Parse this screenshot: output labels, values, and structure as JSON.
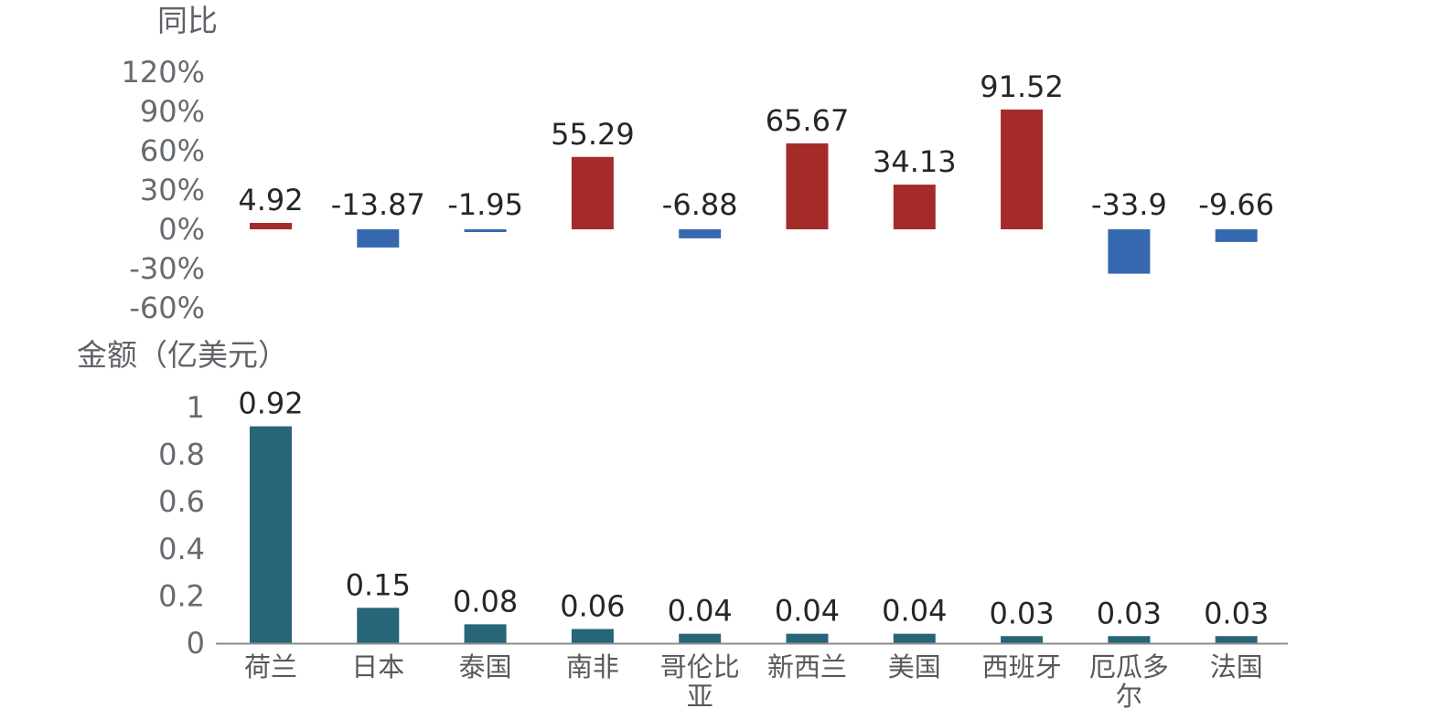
{
  "chart_data": [
    {
      "type": "bar",
      "ylabel": "同比",
      "yticks": [
        "120%",
        "90%",
        "60%",
        "30%",
        "0%",
        "-30%",
        "-60%"
      ],
      "ylim": [
        -60,
        120
      ],
      "categories": [
        "荷兰",
        "日本",
        "泰国",
        "南非",
        "哥伦比亚",
        "新西兰",
        "美国",
        "西班牙",
        "厄瓜多尔",
        "法国"
      ],
      "values": [
        4.92,
        -13.87,
        -1.95,
        55.29,
        -6.88,
        65.67,
        34.13,
        91.52,
        -33.9,
        -9.66
      ],
      "value_labels": [
        "4.92",
        "-13.87",
        "-1.95",
        "55.29",
        "-6.88",
        "65.67",
        "34.13",
        "91.52",
        "-33.9",
        "-9.66"
      ],
      "colors": {
        "positive": "#a52a2a",
        "negative": "#3668b0"
      },
      "grid": false
    },
    {
      "type": "bar",
      "ylabel": "金额（亿美元）",
      "yticks": [
        "1",
        "0.8",
        "0.6",
        "0.4",
        "0.2",
        "0"
      ],
      "ylim": [
        0,
        1
      ],
      "categories": [
        "荷兰",
        "日本",
        "泰国",
        "南非",
        "哥伦比亚",
        "新西兰",
        "美国",
        "西班牙",
        "厄瓜多尔",
        "法国"
      ],
      "category_lines": [
        [
          "荷兰"
        ],
        [
          "日本"
        ],
        [
          "泰国"
        ],
        [
          "南非"
        ],
        [
          "哥伦比",
          "亚"
        ],
        [
          "新西兰"
        ],
        [
          "美国"
        ],
        [
          "西班牙"
        ],
        [
          "厄瓜多",
          "尔"
        ],
        [
          "法国"
        ]
      ],
      "values": [
        0.92,
        0.15,
        0.08,
        0.06,
        0.04,
        0.04,
        0.04,
        0.03,
        0.03,
        0.03
      ],
      "value_labels": [
        "0.92",
        "0.15",
        "0.08",
        "0.06",
        "0.04",
        "0.04",
        "0.04",
        "0.03",
        "0.03",
        "0.03"
      ],
      "colors": {
        "bar": "#276578",
        "axis": "#8c8c8c"
      },
      "grid": false
    }
  ]
}
